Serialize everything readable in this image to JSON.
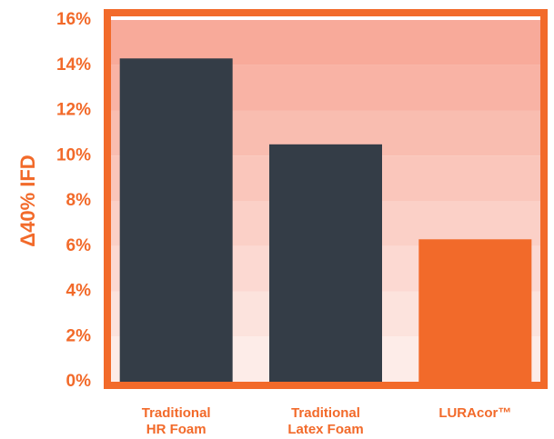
{
  "chart_data": {
    "type": "bar",
    "y_label": "Δ40% IFD",
    "categories": [
      "Traditional\nHR Foam",
      "Traditional\nLatex Foam",
      "LURAcor™"
    ],
    "values": [
      14.3,
      10.5,
      6.3
    ],
    "colors": [
      "#343d47",
      "#343d47",
      "#f26a2a"
    ],
    "ylim": [
      0,
      16
    ],
    "yticks": [
      {
        "value": 0,
        "label": "0%"
      },
      {
        "value": 2,
        "label": "2%"
      },
      {
        "value": 4,
        "label": "4%"
      },
      {
        "value": 6,
        "label": "6%"
      },
      {
        "value": 8,
        "label": "8%"
      },
      {
        "value": 10,
        "label": "10%"
      },
      {
        "value": 12,
        "label": "12%"
      },
      {
        "value": 14,
        "label": "14%"
      },
      {
        "value": 16,
        "label": "16%"
      }
    ],
    "frame_color": "#f26a2a"
  }
}
